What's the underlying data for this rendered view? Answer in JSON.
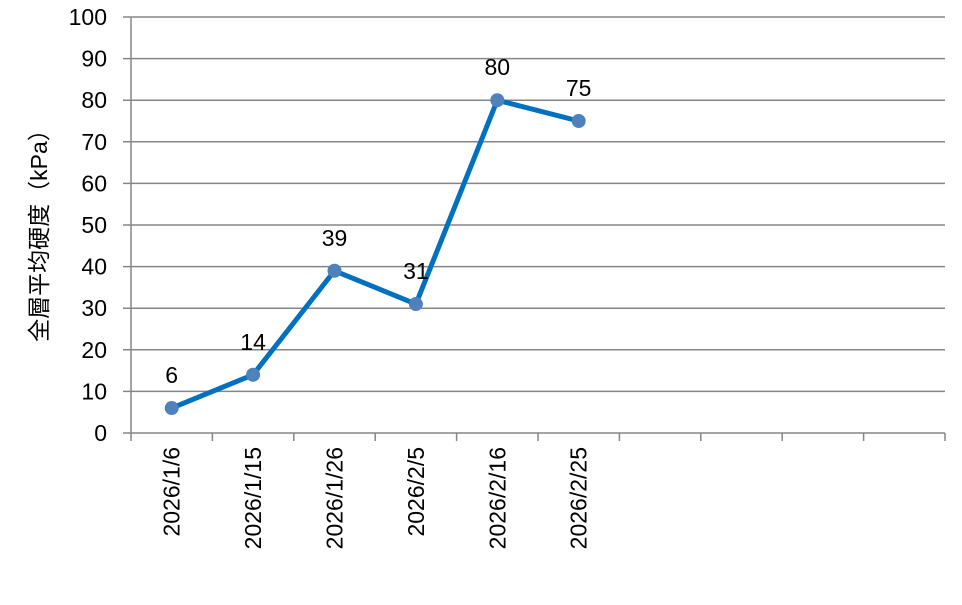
{
  "chart_data": {
    "type": "line",
    "title": "",
    "xlabel": "",
    "ylabel": "全層平均硬度（kPa）",
    "categories": [
      "2026/1/6",
      "2026/1/15",
      "2026/1/26",
      "2026/2/5",
      "2026/2/16",
      "2026/2/25",
      "",
      "",
      "",
      ""
    ],
    "series": [
      {
        "values": [
          6,
          14,
          39,
          31,
          80,
          75,
          null,
          null,
          null,
          null
        ],
        "data_labels": [
          "6",
          "14",
          "39",
          "31",
          "80",
          "75"
        ]
      }
    ],
    "ylim": [
      0,
      100
    ],
    "yticks": [
      "0",
      "10",
      "20",
      "30",
      "40",
      "50",
      "60",
      "70",
      "80",
      "90",
      "100"
    ],
    "grid": true,
    "legend": "none",
    "colors": {
      "line": "#0070C0",
      "marker": "#4F81BD",
      "grid": "#868686"
    }
  }
}
